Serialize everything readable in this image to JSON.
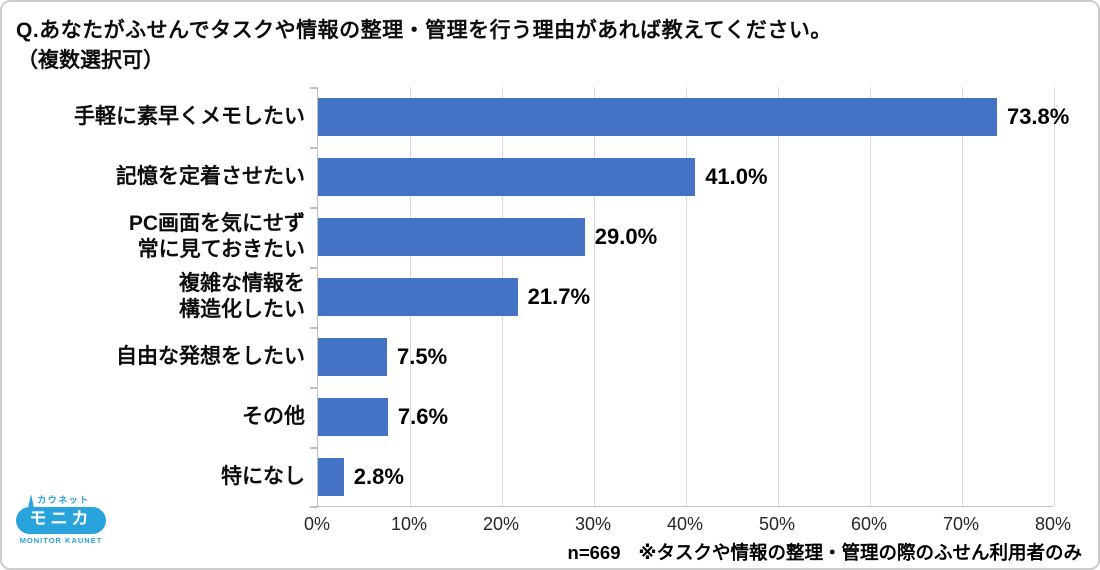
{
  "title": {
    "line1": "Q.あなたがふせんでタスクや情報の整理・管理を行う理由があれば教えてください。",
    "line2": "（複数選択可）"
  },
  "chart_data": {
    "type": "bar",
    "orientation": "horizontal",
    "title": "Q.あなたがふせんでタスクや情報の整理・管理を行う理由があれば教えてください。（複数選択可）",
    "categories": [
      "手軽に素早くメモしたい",
      "記憶を定着させたい",
      "PC画面を気にせず\n常に見ておきたい",
      "複雑な情報を\n構造化したい",
      "自由な発想をしたい",
      "その他",
      "特になし"
    ],
    "values": [
      73.8,
      41.0,
      29.0,
      21.7,
      7.5,
      7.6,
      2.8
    ],
    "value_labels": [
      "73.8%",
      "41.0%",
      "29.0%",
      "21.7%",
      "7.5%",
      "7.6%",
      "2.8%"
    ],
    "xlabel": "",
    "ylabel": "",
    "xlim": [
      0,
      80
    ],
    "x_tick_step": 10,
    "x_tick_labels": [
      "0%",
      "10%",
      "20%",
      "30%",
      "40%",
      "50%",
      "60%",
      "70%",
      "80%"
    ],
    "grid": true,
    "legend": false,
    "bar_color": "#4472c4",
    "gridline_color": "#d9d9d9",
    "axis_color": "#bfbfbf"
  },
  "footnote": {
    "sample": "n=669",
    "note": "※タスクや情報の整理・管理の際のふせん利用者のみ"
  },
  "logo": {
    "top": "カウネット",
    "main": "モニカ",
    "bottom": "MONITOR KAUNET",
    "color": "#29a3dc"
  }
}
